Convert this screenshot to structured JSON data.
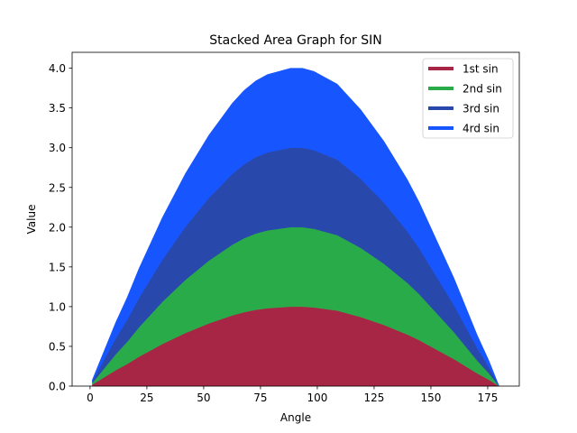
{
  "chart_data": {
    "type": "area",
    "stacked": true,
    "title": "Stacked Area Graph for SIN",
    "xlabel": "Angle",
    "ylabel": "Value",
    "xlim": [
      -7.9,
      188.9
    ],
    "ylim": [
      0.0,
      4.2
    ],
    "x_ticks": [
      "0",
      "25",
      "50",
      "75",
      "100",
      "125",
      "150",
      "175"
    ],
    "y_ticks": [
      "0.0",
      "0.5",
      "1.0",
      "1.5",
      "2.0",
      "2.5",
      "3.0",
      "3.5",
      "4.0"
    ],
    "grid": false,
    "legend_position": "top-right",
    "x": [
      1,
      6.13,
      11.27,
      16.4,
      21.53,
      26.67,
      31.8,
      36.93,
      42.07,
      47.2,
      52.33,
      57.47,
      62.6,
      67.73,
      72.87,
      78,
      83.13,
      88.27,
      93.4,
      98.53,
      103.67,
      108.8,
      113.93,
      119.07,
      124.2,
      129.33,
      134.47,
      139.6,
      144.73,
      149.87,
      155,
      160.13,
      165.27,
      170.4,
      175.53,
      180
    ],
    "series": [
      {
        "name": "1st sin",
        "color": "#a82645",
        "values": [
          0.02,
          0.11,
          0.2,
          0.28,
          0.37,
          0.45,
          0.53,
          0.6,
          0.67,
          0.73,
          0.79,
          0.84,
          0.89,
          0.93,
          0.96,
          0.98,
          0.99,
          1.0,
          1.0,
          0.99,
          0.97,
          0.95,
          0.91,
          0.87,
          0.82,
          0.77,
          0.71,
          0.65,
          0.58,
          0.5,
          0.42,
          0.34,
          0.25,
          0.16,
          0.08,
          0.0
        ]
      },
      {
        "name": "2nd sin",
        "color": "#2aab4a",
        "values": [
          0.02,
          0.11,
          0.2,
          0.28,
          0.37,
          0.45,
          0.53,
          0.6,
          0.67,
          0.73,
          0.79,
          0.84,
          0.89,
          0.93,
          0.96,
          0.98,
          0.99,
          1.0,
          1.0,
          0.99,
          0.97,
          0.95,
          0.91,
          0.87,
          0.82,
          0.77,
          0.71,
          0.65,
          0.58,
          0.5,
          0.42,
          0.34,
          0.25,
          0.16,
          0.08,
          0.0
        ]
      },
      {
        "name": "3rd sin",
        "color": "#2849ab",
        "values": [
          0.02,
          0.11,
          0.2,
          0.28,
          0.37,
          0.45,
          0.53,
          0.6,
          0.67,
          0.73,
          0.79,
          0.84,
          0.89,
          0.93,
          0.96,
          0.98,
          0.99,
          1.0,
          1.0,
          0.99,
          0.97,
          0.95,
          0.91,
          0.87,
          0.82,
          0.77,
          0.71,
          0.65,
          0.58,
          0.5,
          0.42,
          0.34,
          0.25,
          0.16,
          0.08,
          0.0
        ]
      },
      {
        "name": "4rd sin",
        "color": "#1755fe",
        "values": [
          0.02,
          0.11,
          0.2,
          0.28,
          0.37,
          0.45,
          0.53,
          0.6,
          0.67,
          0.73,
          0.79,
          0.84,
          0.89,
          0.93,
          0.96,
          0.98,
          0.99,
          1.0,
          1.0,
          0.99,
          0.97,
          0.95,
          0.91,
          0.87,
          0.82,
          0.77,
          0.71,
          0.65,
          0.58,
          0.5,
          0.42,
          0.34,
          0.25,
          0.16,
          0.08,
          0.0
        ]
      }
    ]
  }
}
